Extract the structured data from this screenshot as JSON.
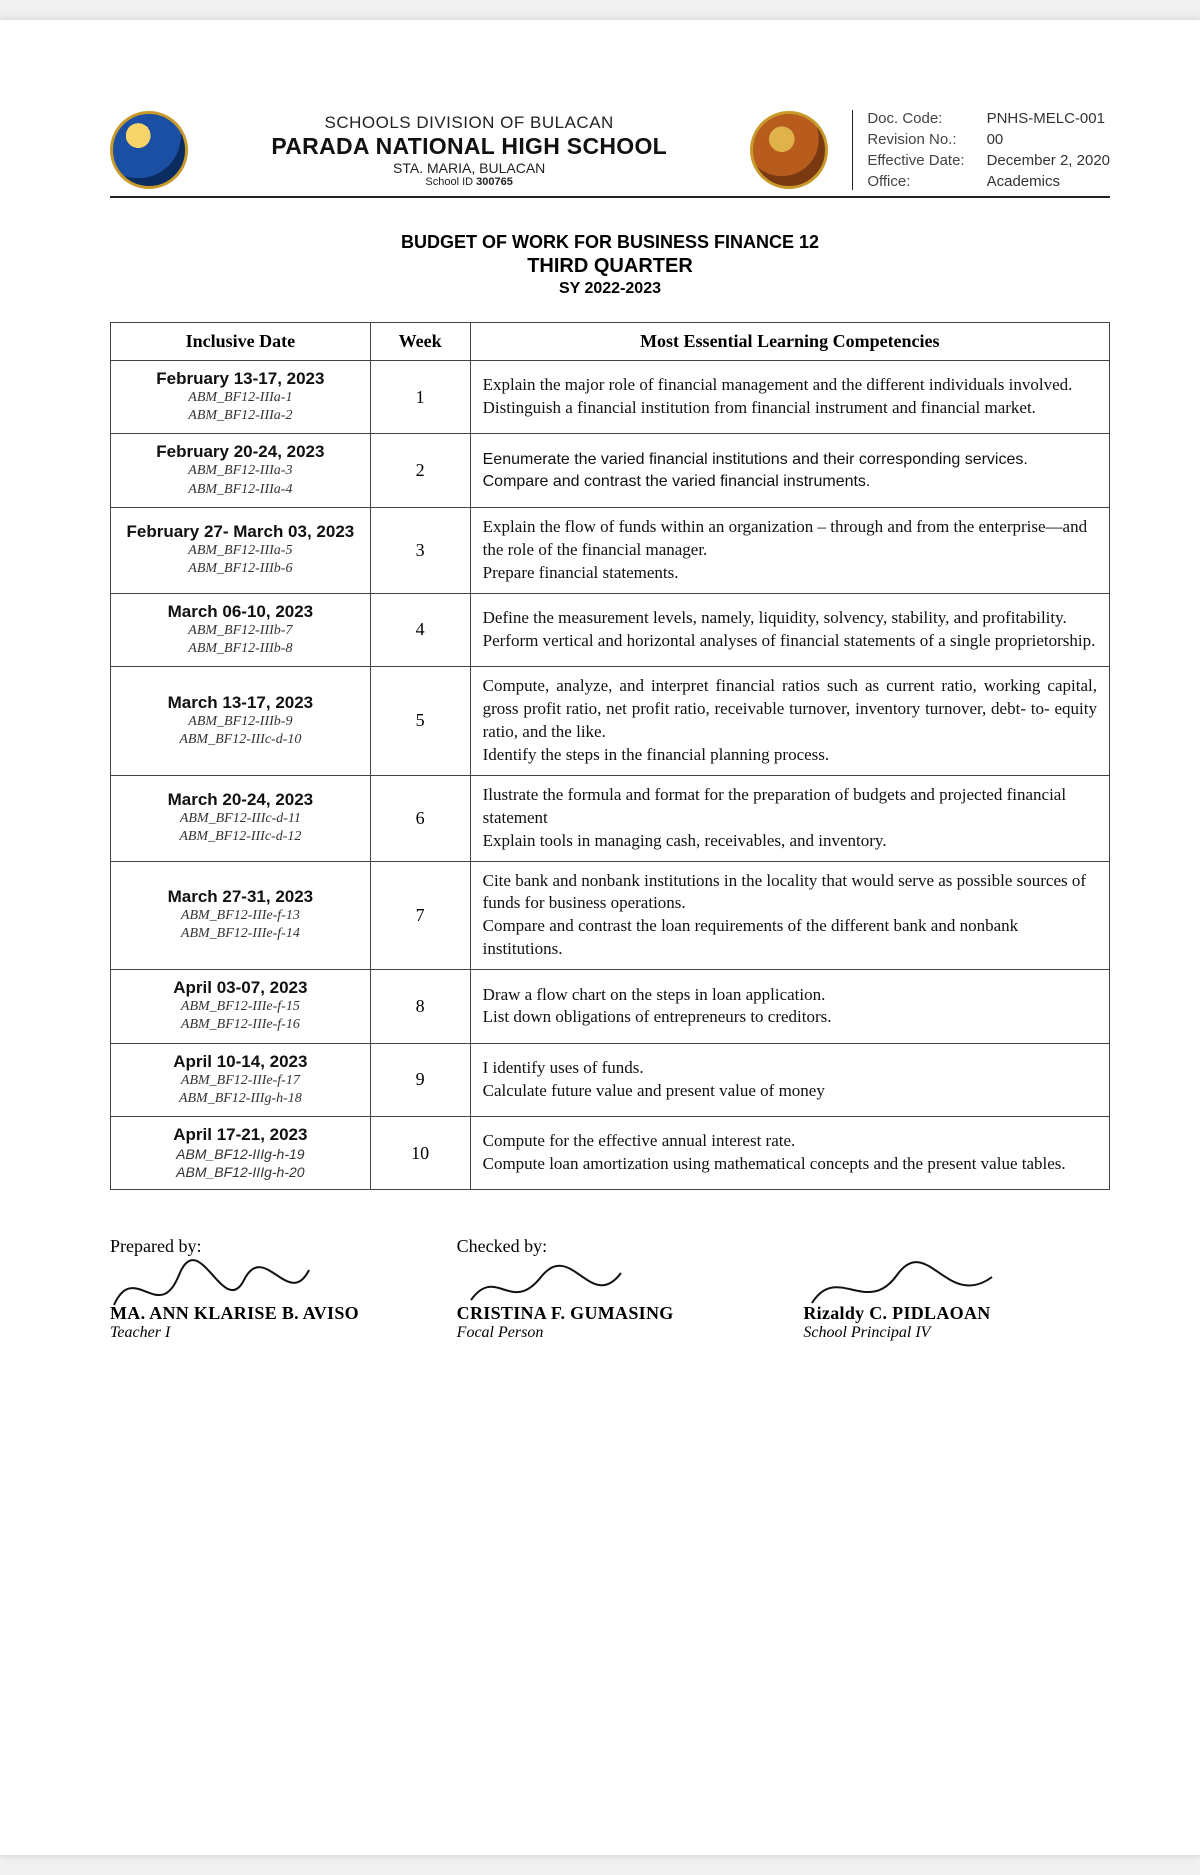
{
  "header": {
    "division": "SCHOOLS DIVISION OF BULACAN",
    "school": "PARADA NATIONAL HIGH SCHOOL",
    "address": "STA. MARIA, BULACAN",
    "school_id_label": "School ID",
    "school_id": "300765"
  },
  "doc_meta": {
    "labels": {
      "code": "Doc. Code:",
      "revision": "Revision No.:",
      "effective": "Effective Date:",
      "office": "Office:"
    },
    "code": "PNHS-MELC-001",
    "revision": "00",
    "effective": "December 2, 2020",
    "office": "Academics"
  },
  "title": {
    "line1": "BUDGET OF WORK FOR BUSINESS FINANCE 12",
    "line2": "THIRD QUARTER",
    "line3": "SY 2022-2023"
  },
  "table": {
    "headers": {
      "date": "Inclusive Date",
      "week": "Week",
      "comp": "Most Essential Learning Competencies"
    },
    "rows": [
      {
        "date": "February 13-17, 2023",
        "codes": [
          "ABM_BF12-IIIa-1",
          "ABM_BF12-IIIa-2"
        ],
        "week": "1",
        "comp": "Explain the major role of financial management and the different individuals involved.\nDistinguish a financial institution from financial instrument and financial market.",
        "style": "serif"
      },
      {
        "date": "February 20-24, 2023",
        "codes": [
          "ABM_BF12-IIIa-3",
          "ABM_BF12-IIIa-4"
        ],
        "week": "2",
        "comp": "Eenumerate the varied financial institutions and their corresponding services.\nCompare and contrast the varied financial instruments.",
        "style": "sans"
      },
      {
        "date": "February 27- March 03, 2023",
        "codes": [
          "ABM_BF12-IIIa-5",
          "ABM_BF12-IIIb-6"
        ],
        "week": "3",
        "comp": "Explain the flow of funds within an organization – through and from the enterprise—and the role of the financial manager.\nPrepare financial statements.",
        "style": "serif"
      },
      {
        "date": "March 06-10, 2023",
        "codes": [
          "ABM_BF12-IIIb-7",
          "ABM_BF12-IIIb-8"
        ],
        "week": "4",
        "comp": "Define the measurement levels, namely, liquidity, solvency, stability, and profitability.\nPerform vertical and horizontal analyses of financial statements of a single proprietorship.",
        "style": "serif"
      },
      {
        "date": "March 13-17, 2023",
        "codes": [
          "ABM_BF12-IIIb-9",
          "ABM_BF12-IIIc-d-10"
        ],
        "week": "5",
        "comp": "Compute, analyze, and interpret financial ratios such as current ratio, working capital, gross profit ratio, net profit ratio, receivable turnover, inventory turnover, debt- to- equity ratio, and the like.\nIdentify the steps in the financial planning process.",
        "style": "justify"
      },
      {
        "date": "March 20-24, 2023",
        "codes": [
          "ABM_BF12-IIIc-d-11",
          "ABM_BF12-IIIc-d-12"
        ],
        "week": "6",
        "comp": "Ilustrate the formula and format for the preparation of budgets and projected financial statement\nExplain tools in managing cash, receivables, and inventory.",
        "style": "serif"
      },
      {
        "date": "March 27-31, 2023",
        "codes": [
          "ABM_BF12-IIIe-f-13",
          "ABM_BF12-IIIe-f-14"
        ],
        "week": "7",
        "comp": "Cite bank and nonbank institutions in the locality that would serve as possible sources of funds for business operations.\nCompare and contrast the loan requirements of the different bank and nonbank institutions.",
        "style": "serif"
      },
      {
        "date": "April 03-07, 2023",
        "codes": [
          "ABM_BF12-IIIe-f-15",
          "ABM_BF12-IIIe-f-16"
        ],
        "week": "8",
        "comp": "Draw a flow chart on the steps in loan application.\nList down obligations of entrepreneurs to creditors.",
        "style": "serif"
      },
      {
        "date": "April 10-14, 2023",
        "codes": [
          "ABM_BF12-IIIe-f-17",
          "ABM_BF12-IIIg-h-18"
        ],
        "week": "9",
        "comp": "I identify uses of funds.\nCalculate future value and present value of money",
        "style": "serif"
      },
      {
        "date": "April 17-21, 2023",
        "codes": [
          "ABM_BF12-IIIg-h-19",
          "ABM_BF12-IIIg-h-20"
        ],
        "week": "10",
        "comp": "Compute for the effective annual interest rate.\nCompute loan amortization using mathematical concepts and the present value tables.",
        "style": "serif",
        "code_style": "sans"
      }
    ]
  },
  "signatures": {
    "prepared_label": "Prepared by:",
    "checked_label": "Checked by:",
    "cols": [
      {
        "name": "MA. ANN KLARISE B. AVISO",
        "role": "Teacher I"
      },
      {
        "name": "CRISTINA F. GUMASING",
        "role": "Focal Person"
      },
      {
        "name": "Rizaldy C. PIDLAOAN",
        "role": "School Principal IV"
      }
    ]
  }
}
